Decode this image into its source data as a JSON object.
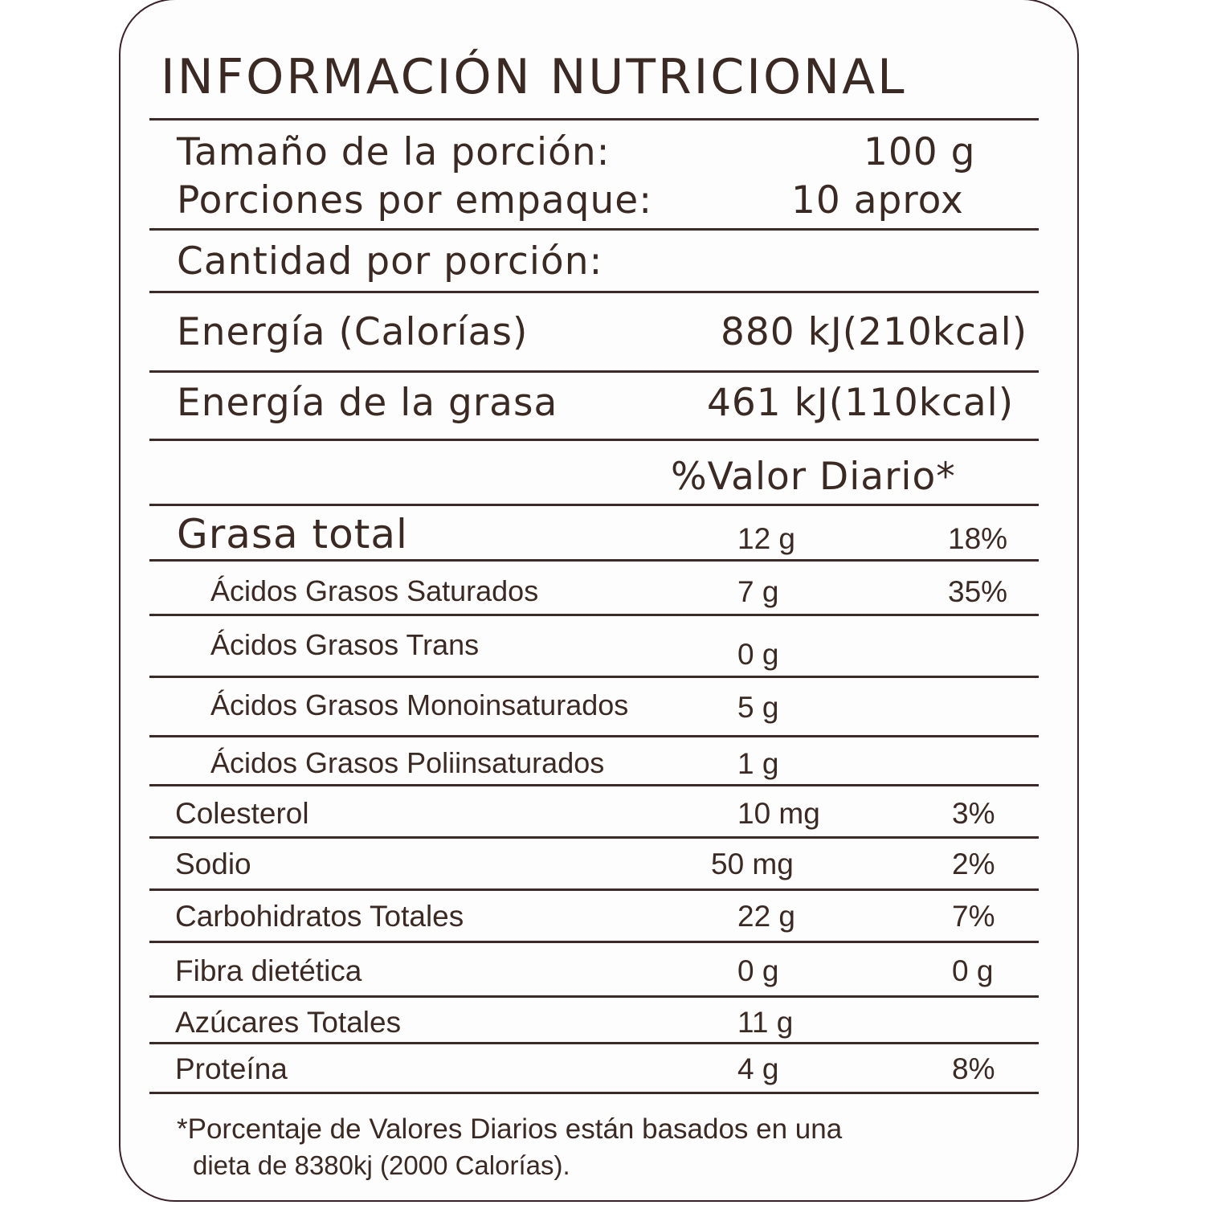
{
  "title": "INFORMACIÓN NUTRICIONAL",
  "serving": {
    "size_label": "Tamaño de la porción:",
    "size_value": "100 g",
    "per_package_label": "Porciones por empaque:",
    "per_package_value": "10 aprox"
  },
  "amount_per_serving": "Cantidad por porción:",
  "energy": {
    "label": "Energía (Calorías)",
    "value": "880 kJ(210kcal)"
  },
  "energy_fat": {
    "label": "Energía de la grasa",
    "value": "461 kJ(110kcal)"
  },
  "dv_header": "%Valor Diario*",
  "rows": [
    {
      "label": "Grasa total",
      "amount": "12 g",
      "dv": "18%"
    },
    {
      "label": "Ácidos Grasos Saturados",
      "amount": "7 g",
      "dv": "35%"
    },
    {
      "label": "Ácidos Grasos Trans",
      "amount": "0 g",
      "dv": ""
    },
    {
      "label": "Ácidos Grasos Monoinsaturados",
      "amount": "5 g",
      "dv": ""
    },
    {
      "label": "Ácidos Grasos Poliinsaturados",
      "amount": "1 g",
      "dv": ""
    },
    {
      "label": "Colesterol",
      "amount": "10 mg",
      "dv": "3%"
    },
    {
      "label": "Sodio",
      "amount": "50 mg",
      "dv": "2%"
    },
    {
      "label": "Carbohidratos Totales",
      "amount": "22 g",
      "dv": "7%"
    },
    {
      "label": "Fibra dietética",
      "amount": "0 g",
      "dv": "0 g"
    },
    {
      "label": "Azúcares Totales",
      "amount": "11 g",
      "dv": ""
    },
    {
      "label": "Proteína",
      "amount": "4 g",
      "dv": "8%"
    }
  ],
  "footnote": {
    "line1": "*Porcentaje de Valores Diarios están basados en una",
    "line2": "dieta de 8380kj (2000 Calorías)."
  },
  "colors": {
    "text": "#3b2a24",
    "border": "#3b2228",
    "background": "#fdfdfd"
  }
}
